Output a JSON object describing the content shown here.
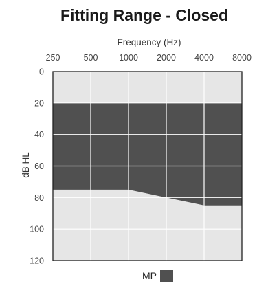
{
  "chart_data": {
    "type": "area",
    "title": "Fitting Range - Closed",
    "xlabel": "Frequency (Hz)",
    "ylabel": "dB HL",
    "x_axis_position": "top",
    "y_axis_inverted": true,
    "x_scale": "log",
    "categories": [
      "250",
      "500",
      "1000",
      "2000",
      "4000",
      "8000"
    ],
    "x": [
      250,
      500,
      1000,
      2000,
      4000,
      8000
    ],
    "ylim": [
      0,
      120
    ],
    "yticks": [
      "0",
      "20",
      "40",
      "60",
      "80",
      "100",
      "120"
    ],
    "ytick_values": [
      0,
      20,
      40,
      60,
      80,
      100,
      120
    ],
    "grid": true,
    "legend_position": "bottom-center",
    "series": [
      {
        "name": "MP",
        "lower_x": [
          250,
          1000,
          2000,
          4000,
          8000
        ],
        "lower_y": [
          75,
          75,
          80,
          85,
          85
        ],
        "upper_x": [
          250,
          8000
        ],
        "upper_y": [
          20,
          20
        ]
      }
    ],
    "colors": {
      "fill": "#505050",
      "plot_background": "#e6e6e6",
      "grid": "#ffffff",
      "axis": "#222222",
      "tick_text": "#444444"
    }
  }
}
